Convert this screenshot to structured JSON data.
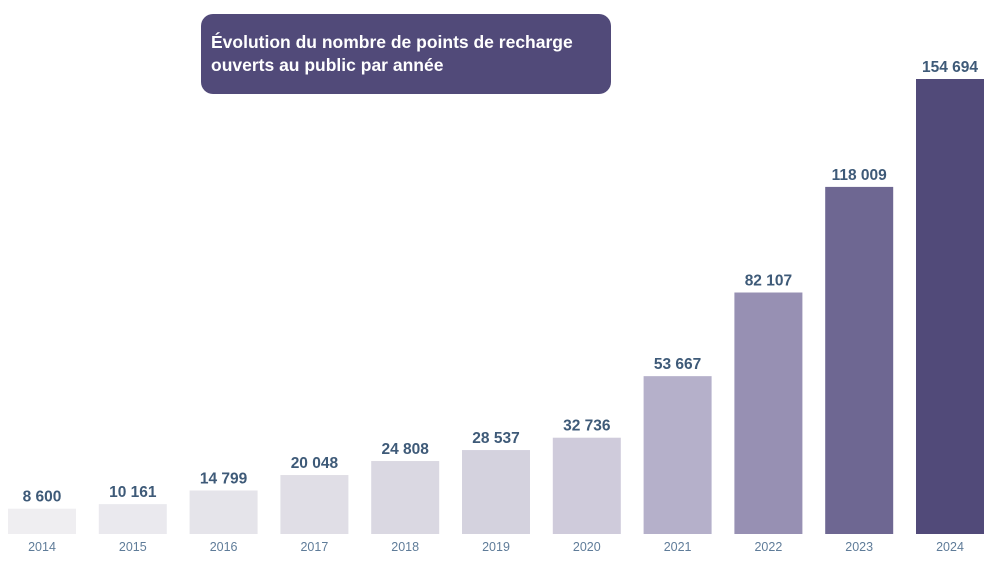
{
  "title": {
    "line1": "Évolution du nombre de points de recharge",
    "line2": "ouverts au public par année"
  },
  "chart_data": {
    "type": "bar",
    "title": "Évolution du nombre de points de recharge ouverts au public par année",
    "categories": [
      "2014",
      "2015",
      "2016",
      "2017",
      "2018",
      "2019",
      "2020",
      "2021",
      "2022",
      "2023",
      "2024"
    ],
    "values": [
      8600,
      10161,
      14799,
      20048,
      24808,
      28537,
      32736,
      53667,
      82107,
      118009,
      154694
    ],
    "value_labels": [
      "8 600",
      "10 161",
      "14 799",
      "20 048",
      "24 808",
      "28 537",
      "32 736",
      "53 667",
      "82 107",
      "118 009",
      "154 694"
    ],
    "colors": [
      "#efeef1",
      "#eae9ee",
      "#e5e4ea",
      "#e0dee6",
      "#dad8e2",
      "#d4d2de",
      "#cfcbdb",
      "#b5b0ca",
      "#9790b3",
      "#6e6792",
      "#514a79"
    ],
    "xlabel": "",
    "ylabel": "",
    "ylim": [
      0,
      154694
    ],
    "grid": false,
    "legend": "none"
  }
}
